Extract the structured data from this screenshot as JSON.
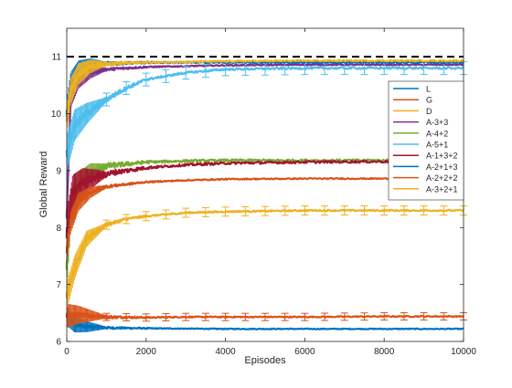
{
  "chart_data": {
    "type": "line",
    "xlabel": "Episodes",
    "ylabel": "Global Reward",
    "xlim": [
      0,
      10000
    ],
    "ylim": [
      6,
      11.5
    ],
    "xticks": [
      0,
      2000,
      4000,
      6000,
      8000,
      10000
    ],
    "yticks": [
      6,
      7,
      8,
      9,
      10,
      11
    ],
    "reference_line": {
      "y": 11,
      "style": "dashed",
      "color": "#000000"
    },
    "legend_position": "right",
    "grid": false,
    "series": [
      {
        "name": "L",
        "color": "#0072BD",
        "x": [
          0,
          200,
          500,
          1000,
          2000,
          4000,
          6000,
          8000,
          10000
        ],
        "values": [
          6.45,
          6.3,
          6.26,
          6.24,
          6.23,
          6.22,
          6.22,
          6.22,
          6.22
        ],
        "noise": 0.03,
        "errorbars": false
      },
      {
        "name": "G",
        "color": "#D95319",
        "x": [
          0,
          300,
          1000,
          2000,
          3000,
          4000,
          6000,
          8000,
          10000
        ],
        "values": [
          6.45,
          6.47,
          6.43,
          6.42,
          6.43,
          6.43,
          6.43,
          6.44,
          6.44
        ],
        "noise": 0.04,
        "errorbars": true
      },
      {
        "name": "D",
        "color": "#EDB120",
        "x": [
          0,
          200,
          500,
          1000,
          1500,
          2000,
          3000,
          4000,
          6000,
          8000,
          10000
        ],
        "values": [
          6.8,
          7.3,
          7.8,
          8.05,
          8.15,
          8.2,
          8.26,
          8.28,
          8.3,
          8.3,
          8.3
        ],
        "noise": 0.05,
        "errorbars": true
      },
      {
        "name": "A-3+3",
        "color": "#7E2F8E",
        "x": [
          0,
          100,
          300,
          600,
          1000,
          2000,
          4000,
          6000,
          8000,
          10000
        ],
        "values": [
          8.2,
          10.3,
          10.6,
          10.72,
          10.78,
          10.82,
          10.85,
          10.86,
          10.86,
          10.86
        ],
        "noise": 0.04,
        "errorbars": false
      },
      {
        "name": "A-4+2",
        "color": "#77AC30",
        "x": [
          0,
          100,
          300,
          600,
          1000,
          2000,
          3000,
          4000,
          6000,
          8000,
          10000
        ],
        "values": [
          7.3,
          8.3,
          8.7,
          8.95,
          9.08,
          9.15,
          9.17,
          9.18,
          9.18,
          9.18,
          9.18
        ],
        "noise": 0.08,
        "errorbars": false
      },
      {
        "name": "A-5+1",
        "color": "#4DBEEE",
        "x": [
          0,
          200,
          500,
          1000,
          1500,
          2000,
          3000,
          4000,
          6000,
          8000,
          10000
        ],
        "values": [
          9.3,
          9.8,
          10.0,
          10.25,
          10.45,
          10.6,
          10.72,
          10.78,
          10.8,
          10.8,
          10.8
        ],
        "noise": 0.07,
        "errorbars": true
      },
      {
        "name": "A-1+3+2",
        "color": "#A2142F",
        "x": [
          0,
          150,
          400,
          800,
          1200,
          2000,
          3000,
          4000,
          6000,
          8000,
          10000
        ],
        "values": [
          7.9,
          8.6,
          8.8,
          8.9,
          8.97,
          9.05,
          9.1,
          9.13,
          9.15,
          9.16,
          9.16
        ],
        "noise": 0.08,
        "errorbars": false
      },
      {
        "name": "A-2+1+3",
        "color": "#0072BD",
        "x": [
          0,
          100,
          300,
          600,
          1000,
          2000,
          4000,
          6000,
          8000,
          10000
        ],
        "values": [
          10.0,
          10.5,
          10.75,
          10.85,
          10.88,
          10.9,
          10.9,
          10.9,
          10.9,
          10.9
        ],
        "noise": 0.05,
        "errorbars": false
      },
      {
        "name": "A-2+2+2",
        "color": "#D95319",
        "x": [
          0,
          100,
          300,
          600,
          1000,
          2000,
          3000,
          4000,
          6000,
          8000,
          10000
        ],
        "values": [
          7.6,
          8.1,
          8.45,
          8.62,
          8.72,
          8.8,
          8.83,
          8.85,
          8.86,
          8.86,
          8.86
        ],
        "noise": 0.04,
        "errorbars": false
      },
      {
        "name": "A-3+2+1",
        "color": "#EDB120",
        "x": [
          0,
          100,
          300,
          600,
          1000,
          2000,
          4000,
          6000,
          8000,
          10000
        ],
        "values": [
          9.9,
          10.4,
          10.7,
          10.83,
          10.88,
          10.9,
          10.92,
          10.93,
          10.93,
          10.93
        ],
        "noise": 0.05,
        "errorbars": false
      }
    ]
  }
}
